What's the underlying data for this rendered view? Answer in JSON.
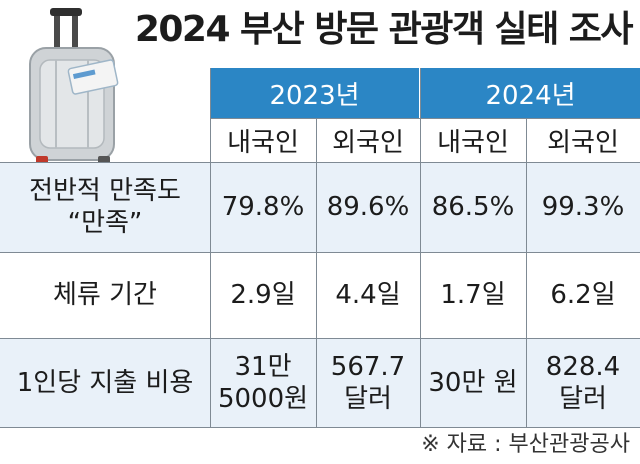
{
  "title": "2024 부산 방문 관광객 실태 조사",
  "icon": "luggage-icon",
  "colors": {
    "header_bg": "#2b86c5",
    "row_tint": "#e9f1f9"
  },
  "chart_data": {
    "type": "table",
    "title": "2024 부산 방문 관광객 실태 조사",
    "column_groups": [
      {
        "year": "2023년",
        "columns": [
          "내국인",
          "외국인"
        ]
      },
      {
        "year": "2024년",
        "columns": [
          "내국인",
          "외국인"
        ]
      }
    ],
    "rows": [
      {
        "label": [
          "전반적 만족도",
          "“만족”"
        ],
        "cells": [
          [
            "79.8%"
          ],
          [
            "89.6%"
          ],
          [
            "86.5%"
          ],
          [
            "99.3%"
          ]
        ]
      },
      {
        "label": [
          "체류 기간"
        ],
        "cells": [
          [
            "2.9일"
          ],
          [
            "4.4일"
          ],
          [
            "1.7일"
          ],
          [
            "6.2일"
          ]
        ]
      },
      {
        "label": [
          "1인당 지출 비용"
        ],
        "cells": [
          [
            "31만",
            "5000원"
          ],
          [
            "567.7",
            "달러"
          ],
          [
            "30만 원"
          ],
          [
            "828.4",
            "달러"
          ]
        ]
      }
    ],
    "values": {
      "satisfaction_percent": {
        "2023": {
          "domestic": 79.8,
          "foreign": 89.6
        },
        "2024": {
          "domestic": 86.5,
          "foreign": 99.3
        }
      },
      "stay_days": {
        "2023": {
          "domestic": 2.9,
          "foreign": 4.4
        },
        "2024": {
          "domestic": 1.7,
          "foreign": 6.2
        }
      },
      "spending": {
        "2023": {
          "domestic_won": 315000,
          "foreign_usd": 567.7
        },
        "2024": {
          "domestic_won": 300000,
          "foreign_usd": 828.4
        }
      }
    }
  },
  "source": "※ 자료 : 부산관광공사"
}
